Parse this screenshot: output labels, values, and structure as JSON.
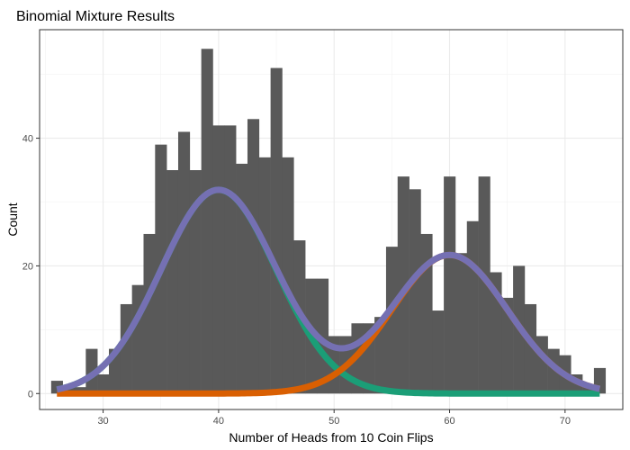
{
  "chart_data": {
    "type": "bar",
    "title": "Binomial Mixture Results",
    "xlabel": "Number of Heads from 10 Coin Flips",
    "ylabel": "Count",
    "xlim": [
      24.5,
      75
    ],
    "ylim": [
      -2.5,
      57
    ],
    "xticks": [
      30,
      40,
      50,
      60,
      70
    ],
    "yticks": [
      0,
      20,
      40
    ],
    "grid": true,
    "bar_color": "#595959",
    "histogram": {
      "bin_width": 1,
      "bins": [
        {
          "x": 26,
          "count": 2
        },
        {
          "x": 27,
          "count": 1
        },
        {
          "x": 28,
          "count": 1
        },
        {
          "x": 29,
          "count": 7
        },
        {
          "x": 30,
          "count": 3
        },
        {
          "x": 31,
          "count": 7
        },
        {
          "x": 32,
          "count": 14
        },
        {
          "x": 33,
          "count": 17
        },
        {
          "x": 34,
          "count": 25
        },
        {
          "x": 35,
          "count": 39
        },
        {
          "x": 36,
          "count": 35
        },
        {
          "x": 37,
          "count": 41
        },
        {
          "x": 38,
          "count": 35
        },
        {
          "x": 39,
          "count": 54
        },
        {
          "x": 40,
          "count": 42
        },
        {
          "x": 41,
          "count": 42
        },
        {
          "x": 42,
          "count": 36
        },
        {
          "x": 43,
          "count": 43
        },
        {
          "x": 44,
          "count": 37
        },
        {
          "x": 45,
          "count": 51
        },
        {
          "x": 46,
          "count": 37
        },
        {
          "x": 47,
          "count": 24
        },
        {
          "x": 48,
          "count": 18
        },
        {
          "x": 49,
          "count": 18
        },
        {
          "x": 50,
          "count": 9
        },
        {
          "x": 51,
          "count": 9
        },
        {
          "x": 52,
          "count": 11
        },
        {
          "x": 53,
          "count": 11
        },
        {
          "x": 54,
          "count": 12
        },
        {
          "x": 55,
          "count": 23
        },
        {
          "x": 56,
          "count": 34
        },
        {
          "x": 57,
          "count": 32
        },
        {
          "x": 58,
          "count": 25
        },
        {
          "x": 59,
          "count": 13
        },
        {
          "x": 60,
          "count": 34
        },
        {
          "x": 61,
          "count": 22
        },
        {
          "x": 62,
          "count": 27
        },
        {
          "x": 63,
          "count": 34
        },
        {
          "x": 64,
          "count": 19
        },
        {
          "x": 65,
          "count": 15
        },
        {
          "x": 66,
          "count": 20
        },
        {
          "x": 67,
          "count": 14
        },
        {
          "x": 68,
          "count": 9
        },
        {
          "x": 69,
          "count": 7
        },
        {
          "x": 70,
          "count": 6
        },
        {
          "x": 71,
          "count": 3
        },
        {
          "x": 72,
          "count": 1
        },
        {
          "x": 73,
          "count": 4
        }
      ]
    },
    "series": [
      {
        "type": "line",
        "color": "#1b9e77",
        "component": {
          "mean": 40,
          "sd": 5,
          "weight": 400
        }
      },
      {
        "type": "line",
        "color": "#d95f02",
        "component": {
          "mean": 60,
          "sd": 5,
          "weight": 272
        }
      },
      {
        "type": "line",
        "color": "#7570b3",
        "component_sum": true
      }
    ],
    "x_curve_range": [
      26,
      73
    ]
  }
}
